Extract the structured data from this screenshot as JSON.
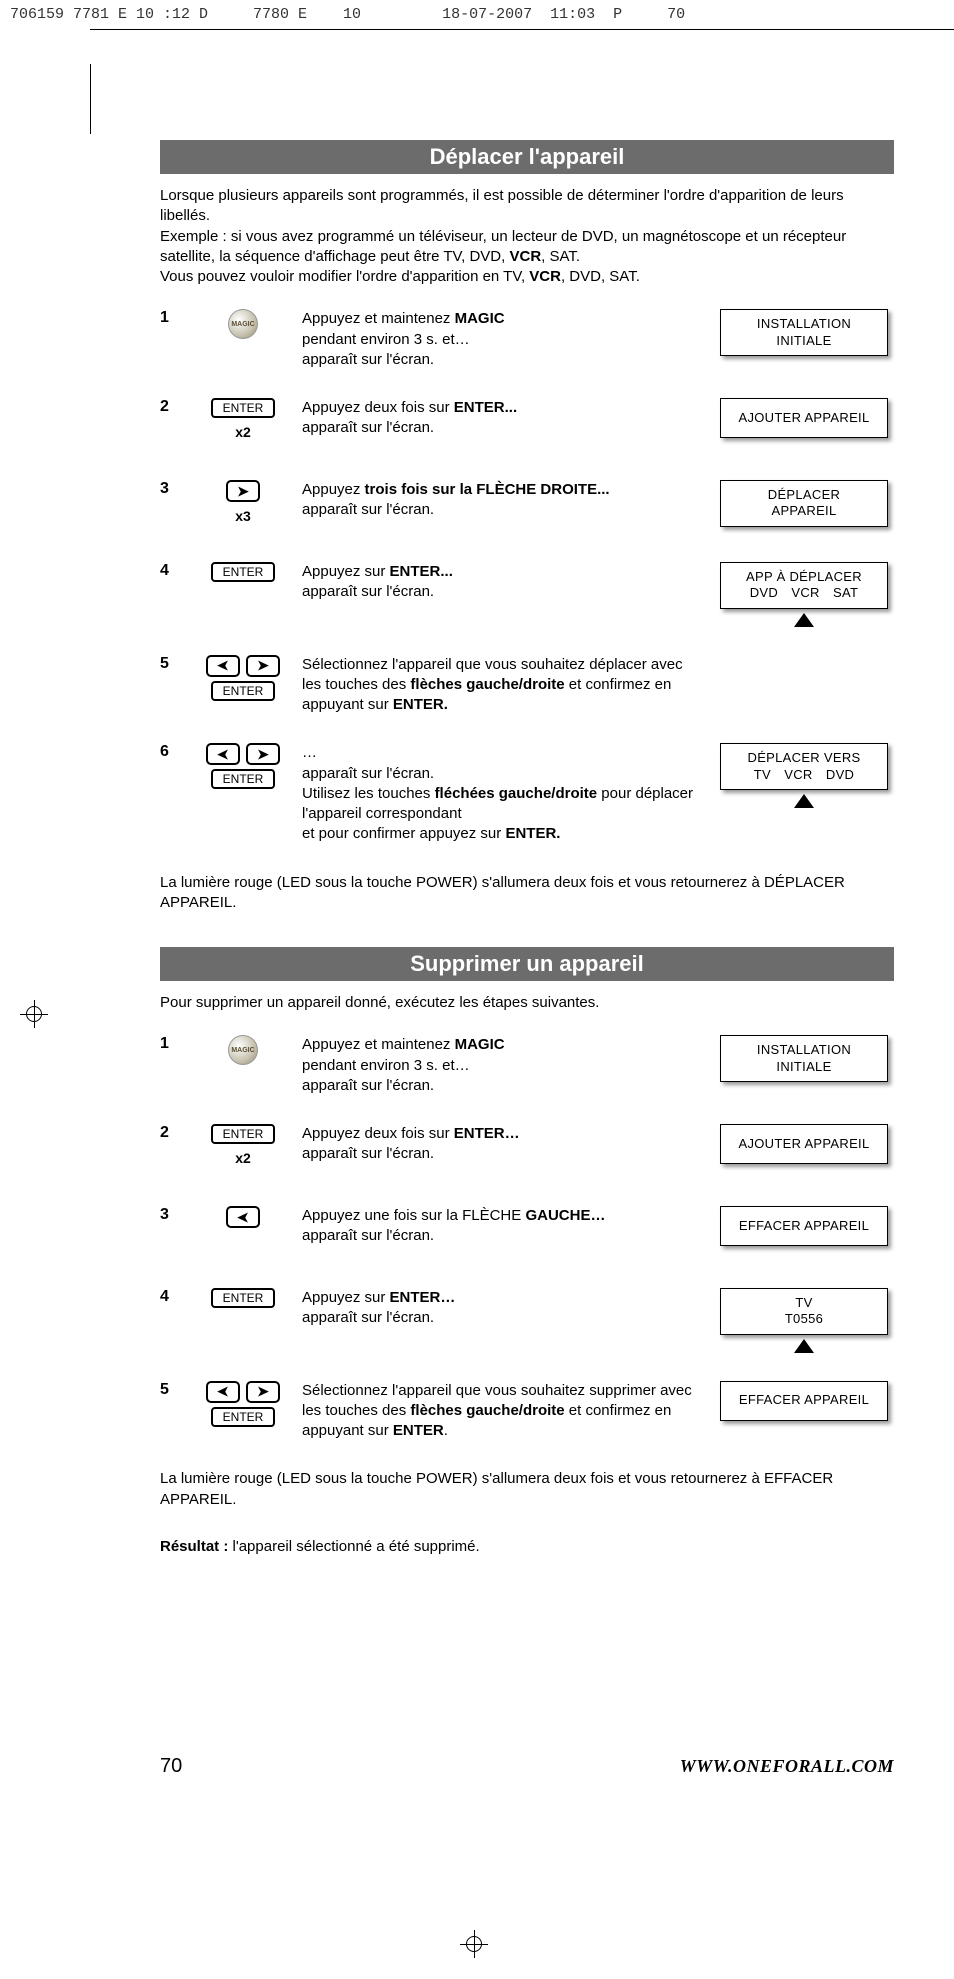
{
  "crop_header": "706159 7781 E 10 :12 D     7780 E    10         18-07-2007  11:03  P     70",
  "section1": {
    "title": "Déplacer l'appareil",
    "intro_html": "Lorsque plusieurs appareils sont programmés, il est possible de déterminer l'ordre d'apparition de leurs libellés.<br>Exemple : si vous avez programmé un téléviseur, un lecteur de DVD, un magnétoscope et un récepteur satellite, la séquence d'affichage peut être TV, DVD, <b>VCR</b>, SAT.<br>Vous pouvez vouloir modifier l'ordre d'apparition en TV, <b>VCR</b>, DVD, SAT.",
    "steps": [
      {
        "num": "1",
        "icons": {
          "type": "magic"
        },
        "text_html": "Appuyez et maintenez <b>MAGIC</b><br>pendant environ 3 s. et…<br>apparaît sur l'écran.",
        "lcd": [
          "INSTALLATION",
          "INITIALE"
        ],
        "pointer": false
      },
      {
        "num": "2",
        "icons": {
          "type": "enter",
          "sub": "x2"
        },
        "text_html": "Appuyez deux fois sur <b>ENTER...</b><br>apparaît sur l'écran.",
        "lcd": [
          "AJOUTER APPAREIL"
        ],
        "pointer": false
      },
      {
        "num": "3",
        "icons": {
          "type": "arrow-right",
          "sub": "x3"
        },
        "text_html": "Appuyez <b>trois fois sur la FLÈCHE DROITE...</b><br>apparaît sur l'écran.",
        "lcd": [
          "DÉPLACER",
          "APPAREIL"
        ],
        "pointer": false
      },
      {
        "num": "4",
        "icons": {
          "type": "enter"
        },
        "text_html": "Appuyez sur <b>ENTER...</b><br>apparaît sur l'écran.",
        "lcd": [
          "APP À DÉPLACER",
          "DVD VCR SAT"
        ],
        "pointer": true
      },
      {
        "num": "5",
        "icons": {
          "type": "lr-enter"
        },
        "text_html": "Sélectionnez l'appareil que vous souhaitez déplacer avec les touches des <b>flèches gauche/droite</b> et confirmez en appuyant sur <b>ENTER.</b>",
        "lcd": null
      },
      {
        "num": "6",
        "icons": {
          "type": "lr-enter"
        },
        "text_html": "…<br>apparaît sur l'écran.<br>Utilisez les touches <b>fléchées gauche/droite</b> pour déplacer l'appareil correspondant<br>et pour confirmer appuyez sur <b>ENTER.</b>",
        "lcd": [
          "DÉPLACER VERS",
          "TV VCR DVD"
        ],
        "pointer": true
      }
    ],
    "note": "La lumière rouge (LED sous la touche POWER) s'allumera deux fois et vous retournerez à DÉPLACER APPAREIL."
  },
  "section2": {
    "title": "Supprimer un appareil",
    "intro": "Pour supprimer un appareil donné, exécutez les étapes suivantes.",
    "steps": [
      {
        "num": "1",
        "icons": {
          "type": "magic"
        },
        "text_html": "Appuyez et maintenez <b>MAGIC</b><br>pendant environ 3 s. et…<br>apparaît sur l'écran.",
        "lcd": [
          "INSTALLATION",
          "INITIALE"
        ],
        "pointer": false
      },
      {
        "num": "2",
        "icons": {
          "type": "enter",
          "sub": "x2"
        },
        "text_html": "Appuyez deux fois sur <b>ENTER…</b><br>apparaît sur l'écran.",
        "lcd": [
          "AJOUTER APPAREIL"
        ],
        "pointer": false
      },
      {
        "num": "3",
        "icons": {
          "type": "arrow-left"
        },
        "text_html": "Appuyez une fois sur la FLÈCHE <b>GAUCHE…</b><br>apparaît sur l'écran.",
        "lcd": [
          "EFFACER APPAREIL"
        ],
        "pointer": false
      },
      {
        "num": "4",
        "icons": {
          "type": "enter"
        },
        "text_html": "Appuyez sur <b>ENTER…</b><br>apparaît sur l'écran.",
        "lcd": [
          "TV",
          "T0556"
        ],
        "pointer": true
      },
      {
        "num": "5",
        "icons": {
          "type": "lr-enter"
        },
        "text_html": "Sélectionnez l'appareil que vous souhaitez supprimer avec les touches des <b>flèches gauche/droite</b> et confirmez en appuyant sur <b>ENTER</b>.",
        "lcd": [
          "EFFACER APPAREIL"
        ],
        "pointer": false
      }
    ],
    "note": "La lumière rouge (LED sous la touche POWER) s'allumera deux fois et vous retournerez à  EFFACER APPAREIL.",
    "result_html": "<b>Résultat :</b> l'appareil sélectionné a été supprimé."
  },
  "labels": {
    "enter": "ENTER",
    "magic": "MAGIC"
  },
  "footer": {
    "page": "70",
    "url": "WWW.ONEFORALL.COM"
  }
}
